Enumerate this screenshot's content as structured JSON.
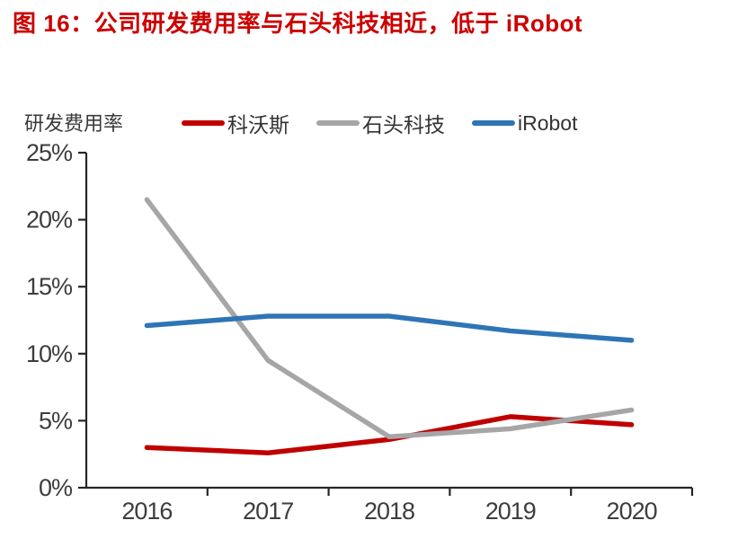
{
  "title": {
    "prefix": "图 16：公司研发费用率与石头科技相近，低于 ",
    "latin": "iRobot"
  },
  "colors": {
    "title_red": "#CC0000",
    "axis": "#262626",
    "tick_text": "#3d3d3d",
    "label_text": "#333333"
  },
  "chart_data": {
    "type": "line",
    "title": "图 16：公司研发费用率与石头科技相近，低于 iRobot",
    "ylabel": "研发费用率",
    "xlabel": "",
    "categories": [
      "2016",
      "2017",
      "2018",
      "2019",
      "2020"
    ],
    "series": [
      {
        "name": "科沃斯",
        "color": "#C00000",
        "values": [
          3.0,
          2.6,
          3.6,
          5.3,
          4.7
        ]
      },
      {
        "name": "石头科技",
        "color": "#A6A6A6",
        "values": [
          21.5,
          9.5,
          3.8,
          4.4,
          5.8
        ]
      },
      {
        "name": "iRobot",
        "color": "#2E75B6",
        "values": [
          12.1,
          12.8,
          12.8,
          11.7,
          11.0
        ]
      }
    ],
    "ylim": [
      0,
      25
    ],
    "yticks": [
      0,
      5,
      10,
      15,
      20,
      25
    ],
    "ytick_labels": [
      "0%",
      "5%",
      "10%",
      "15%",
      "20%",
      "25%"
    ],
    "legend_position": "top",
    "grid": false
  }
}
